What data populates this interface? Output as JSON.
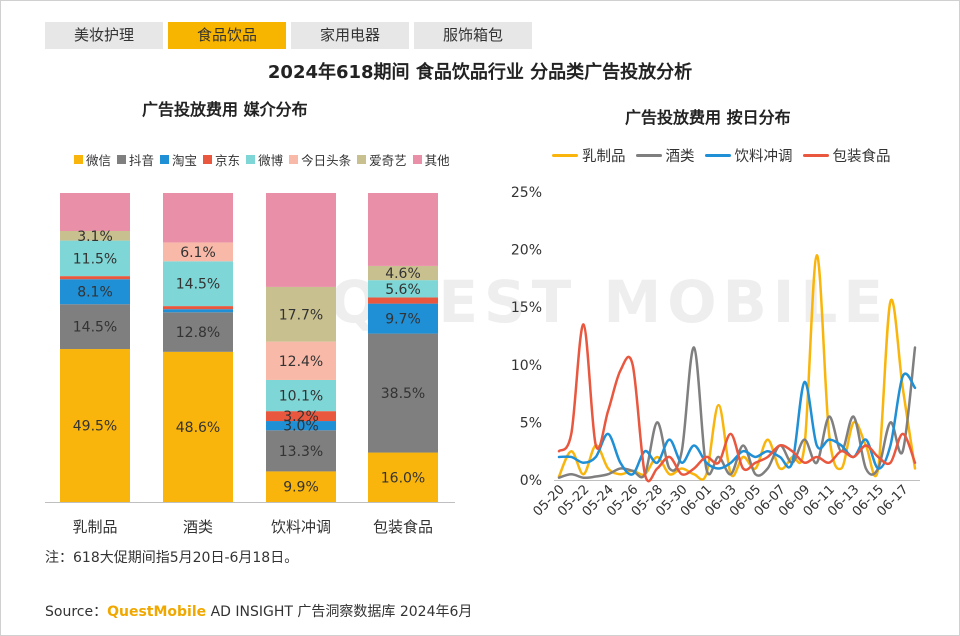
{
  "tabs": [
    "美妆护理",
    "食品饮品",
    "家用电器",
    "服饰箱包"
  ],
  "active_tab": 1,
  "title": "2024年618期间 食品饮品行业 分品类广告投放分析",
  "watermark": "QUEST MOBILE",
  "note": "注：618大促期间指5月20日-6月18日。",
  "source": {
    "prefix": "Source：",
    "brand": "QuestMobile",
    "rest": " AD INSIGHT 广告洞察数据库 2024年6月"
  },
  "chart_data": [
    {
      "type": "bar",
      "stacked": true,
      "title": "广告投放费用 媒介分布",
      "categories": [
        "乳制品",
        "酒类",
        "饮料冲调",
        "包装食品"
      ],
      "series": [
        {
          "name": "微信",
          "color": "#f9b50c",
          "values": [
            49.5,
            48.6,
            9.9,
            16.0
          ],
          "labels": [
            "49.5%",
            "48.6%",
            "9.9%",
            "16.0%"
          ]
        },
        {
          "name": "抖音",
          "color": "#7f7f7f",
          "values": [
            14.5,
            12.8,
            13.3,
            38.5
          ],
          "labels": [
            "14.5%",
            "12.8%",
            "13.3%",
            "38.5%"
          ]
        },
        {
          "name": "淘宝",
          "color": "#1f8fd6",
          "values": [
            8.1,
            1.0,
            3.0,
            9.7
          ],
          "labels": [
            "8.1%",
            "",
            "3.0%",
            "9.7%"
          ]
        },
        {
          "name": "京东",
          "color": "#e9573f",
          "values": [
            1.0,
            1.0,
            3.2,
            2.0
          ],
          "labels": [
            "",
            "",
            "3.2%",
            ""
          ]
        },
        {
          "name": "微博",
          "color": "#7fd6d6",
          "values": [
            11.5,
            14.5,
            10.1,
            5.6
          ],
          "labels": [
            "11.5%",
            "14.5%",
            "10.1%",
            "5.6%"
          ]
        },
        {
          "name": "今日头条",
          "color": "#f9b9a8",
          "values": [
            0.0,
            6.1,
            12.4,
            0.0
          ],
          "labels": [
            "",
            "6.1%",
            "12.4%",
            ""
          ]
        },
        {
          "name": "爱奇艺",
          "color": "#c9c08f",
          "values": [
            3.1,
            0.0,
            17.7,
            4.6
          ],
          "labels": [
            "3.1%",
            "",
            "17.7%",
            "4.6%"
          ]
        },
        {
          "name": "其他",
          "color": "#ea8fa8",
          "values": [
            12.3,
            16.0,
            30.4,
            23.6
          ],
          "labels": [
            "",
            "",
            "",
            ""
          ]
        }
      ],
      "ylim": [
        0,
        100
      ],
      "legend": "top"
    },
    {
      "type": "line",
      "title": "广告投放费用 按日分布",
      "x": [
        "05-20",
        "05-21",
        "05-22",
        "05-23",
        "05-24",
        "05-25",
        "05-26",
        "05-27",
        "05-28",
        "05-29",
        "05-30",
        "05-31",
        "06-01",
        "06-02",
        "06-03",
        "06-04",
        "06-05",
        "06-06",
        "06-07",
        "06-08",
        "06-09",
        "06-10",
        "06-11",
        "06-12",
        "06-13",
        "06-14",
        "06-15",
        "06-16",
        "06-17",
        "06-18"
      ],
      "x_tick_labels": [
        "05-20",
        "05-22",
        "05-24",
        "05-26",
        "05-28",
        "05-30",
        "06-01",
        "06-03",
        "06-05",
        "06-07",
        "06-09",
        "06-11",
        "06-13",
        "06-15",
        "06-17"
      ],
      "y_tick_labels": [
        "0%",
        "5%",
        "10%",
        "15%",
        "20%",
        "25%"
      ],
      "ylim": [
        0,
        25
      ],
      "series": [
        {
          "name": "乳制品",
          "color": "#f9b50c",
          "values": [
            0.3,
            2.5,
            0.5,
            3.0,
            1.0,
            0.5,
            0.8,
            0.5,
            2.0,
            0.5,
            1.0,
            0.5,
            0.5,
            6.5,
            0.5,
            2.0,
            1.0,
            3.5,
            1.0,
            2.0,
            3.0,
            19.5,
            4.0,
            1.0,
            5.0,
            3.0,
            1.0,
            15.5,
            8.0,
            1.0
          ]
        },
        {
          "name": "酒类",
          "color": "#7f7f7f",
          "values": [
            0.2,
            0.5,
            0.2,
            0.3,
            0.5,
            1.0,
            0.8,
            0.5,
            5.0,
            1.0,
            2.5,
            11.5,
            1.0,
            2.0,
            0.5,
            3.0,
            0.5,
            1.0,
            3.0,
            1.5,
            3.5,
            1.5,
            5.5,
            2.5,
            5.5,
            1.0,
            1.0,
            5.0,
            2.5,
            11.5
          ]
        },
        {
          "name": "饮料冲调",
          "color": "#1f8fd6",
          "values": [
            2.0,
            2.0,
            1.5,
            2.0,
            4.0,
            1.5,
            0.5,
            2.5,
            1.5,
            3.5,
            1.5,
            3.0,
            1.5,
            1.0,
            1.5,
            2.5,
            2.0,
            2.5,
            2.0,
            1.5,
            8.5,
            3.0,
            3.5,
            3.0,
            2.0,
            3.5,
            1.0,
            3.0,
            9.0,
            8.0
          ]
        },
        {
          "name": "包装食品",
          "color": "#e9573f",
          "values": [
            2.5,
            4.0,
            13.5,
            3.0,
            6.0,
            9.5,
            10.0,
            0.5,
            1.0,
            2.0,
            0.5,
            1.0,
            2.0,
            1.5,
            4.0,
            1.0,
            1.5,
            2.0,
            3.0,
            2.5,
            1.5,
            2.0,
            1.5,
            2.5,
            2.0,
            3.0,
            2.0,
            1.5,
            4.0,
            1.5
          ]
        }
      ],
      "legend": "top"
    }
  ]
}
